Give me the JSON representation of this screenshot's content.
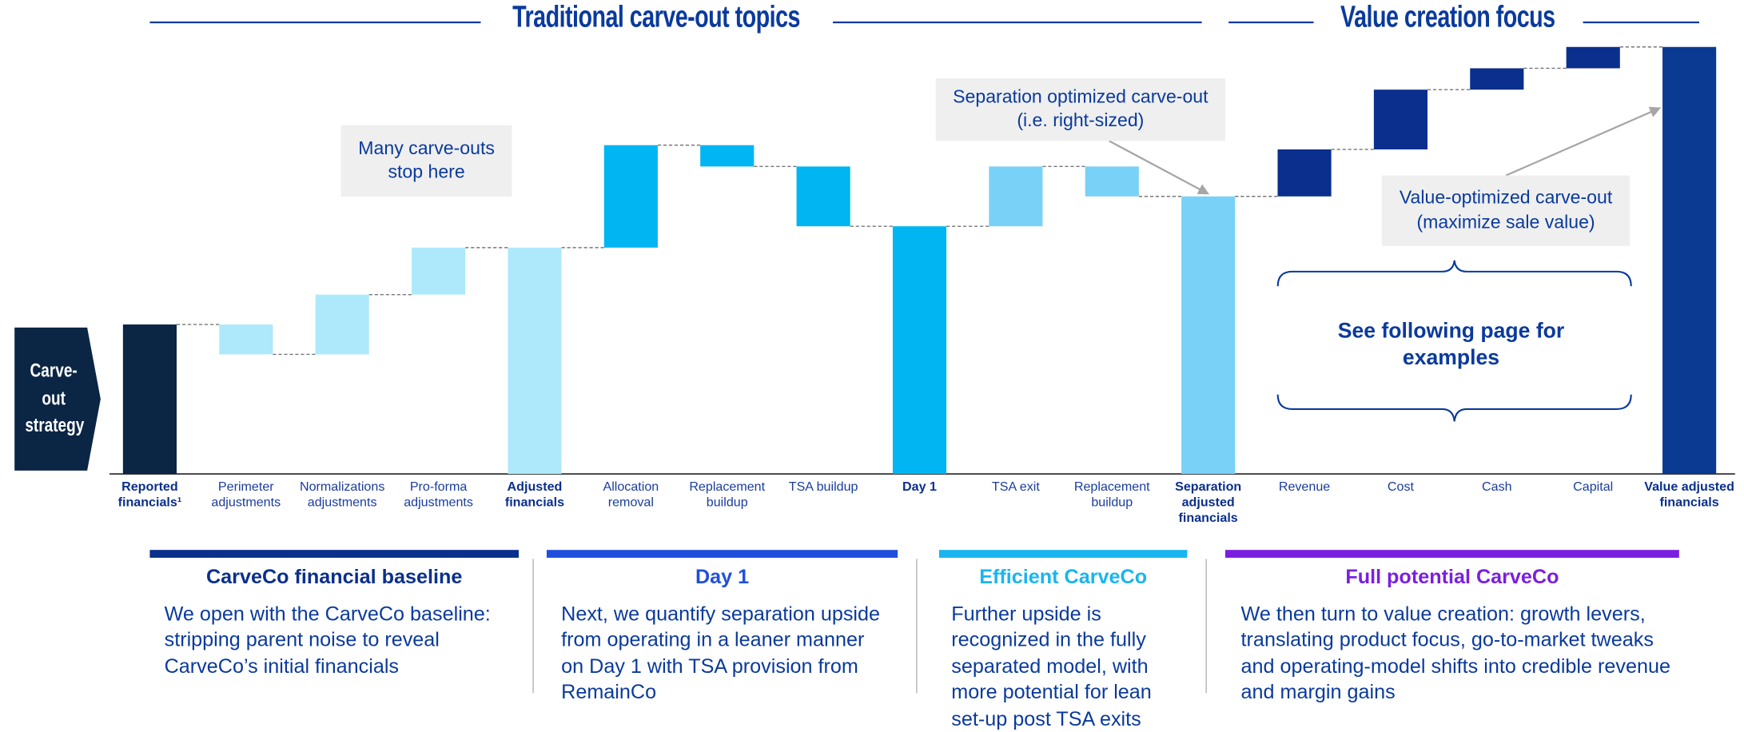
{
  "header": {
    "left_title": "Traditional carve-out topics",
    "right_title": "Value creation focus"
  },
  "strategy_label": "Carve-out strategy",
  "chart_data": {
    "type": "waterfall",
    "categories": [
      "Reported financials¹",
      "Perimeter adjustments",
      "Normalizations adjustments",
      "Pro-forma adjustments",
      "Adjusted financials",
      "Allocation removal",
      "Replacement buildup",
      "TSA buildup",
      "Day 1",
      "TSA exit",
      "Replacement buildup",
      "Separation adjusted financials",
      "Revenue",
      "Cost",
      "Cash",
      "Capital",
      "Value adjusted financials"
    ],
    "values": [
      35,
      -7,
      14,
      11,
      53,
      24,
      -5,
      -14,
      58,
      14,
      -7,
      65,
      11,
      14,
      5,
      5,
      100
    ],
    "measure": [
      "total",
      "relative",
      "relative",
      "relative",
      "total",
      "relative",
      "relative",
      "relative",
      "total",
      "relative",
      "relative",
      "total",
      "relative",
      "relative",
      "relative",
      "relative",
      "total"
    ],
    "colors": [
      "#0b2545",
      "#aee9fb",
      "#aee9fb",
      "#aee9fb",
      "#aee9fb",
      "#00b5f1",
      "#00b5f1",
      "#00b5f1",
      "#00b5f1",
      "#79d1f7",
      "#79d1f7",
      "#79d1f7",
      "#0a2f8c",
      "#0a2f8c",
      "#0a2f8c",
      "#0a2f8c",
      "#0a3a91"
    ],
    "ylim": [
      0,
      100
    ],
    "annotations": [
      "Many carve-outs stop here",
      "Separation optimized carve-out (i.e. right-sized)",
      "Value-optimized carve-out (maximize sale value)",
      "See following page for examples"
    ]
  },
  "sections": [
    {
      "title": "CarveCo financial baseline",
      "color": "#0a2f8c",
      "body": "We open with the CarveCo baseline: stripping parent noise to reveal CarveCo’s initial financials"
    },
    {
      "title": "Day 1",
      "color": "#1f4fdc",
      "body": "Next, we quantify separation upside from operating in a leaner manner on Day 1 with TSA provision from RemainCo"
    },
    {
      "title": "Efficient CarveCo",
      "color": "#19b5ef",
      "body": "Further upside is recognized in the fully separated model, with more potential for lean set-up post TSA exits"
    },
    {
      "title": "Full potential CarveCo",
      "color": "#7a1fe0",
      "body": "We then turn to value creation: growth levers, translating product focus, go-to-market tweaks and operating-model shifts into credible revenue and margin gains"
    }
  ]
}
